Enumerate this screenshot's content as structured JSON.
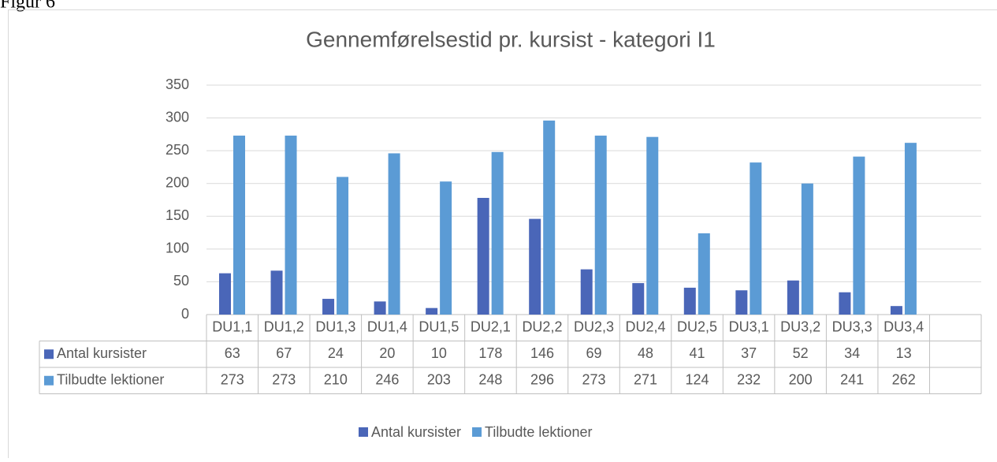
{
  "figure_label": "Figur 6",
  "chart_data": {
    "type": "bar",
    "title": "Gennemførelsestid pr. kursist - kategori I1",
    "categories": [
      "DU1,1",
      "DU1,2",
      "DU1,3",
      "DU1,4",
      "DU1,5",
      "DU2,1",
      "DU2,2",
      "DU2,3",
      "DU2,4",
      "DU2,5",
      "DU3,1",
      "DU3,2",
      "DU3,3",
      "DU3,4",
      null
    ],
    "series": [
      {
        "name": "Antal kursister",
        "color": "#4a66b8",
        "values": [
          63,
          67,
          24,
          20,
          10,
          178,
          146,
          69,
          48,
          41,
          37,
          52,
          34,
          13,
          null
        ]
      },
      {
        "name": "Tilbudte lektioner",
        "color": "#5b9bd5",
        "values": [
          273,
          273,
          210,
          246,
          203,
          248,
          296,
          273,
          271,
          124,
          232,
          200,
          241,
          262,
          null
        ]
      }
    ],
    "ylim": [
      0,
      350
    ],
    "yticks": [
      0,
      50,
      100,
      150,
      200,
      250,
      300,
      350
    ],
    "grid": true,
    "legend": "bottom",
    "data_table": true
  }
}
